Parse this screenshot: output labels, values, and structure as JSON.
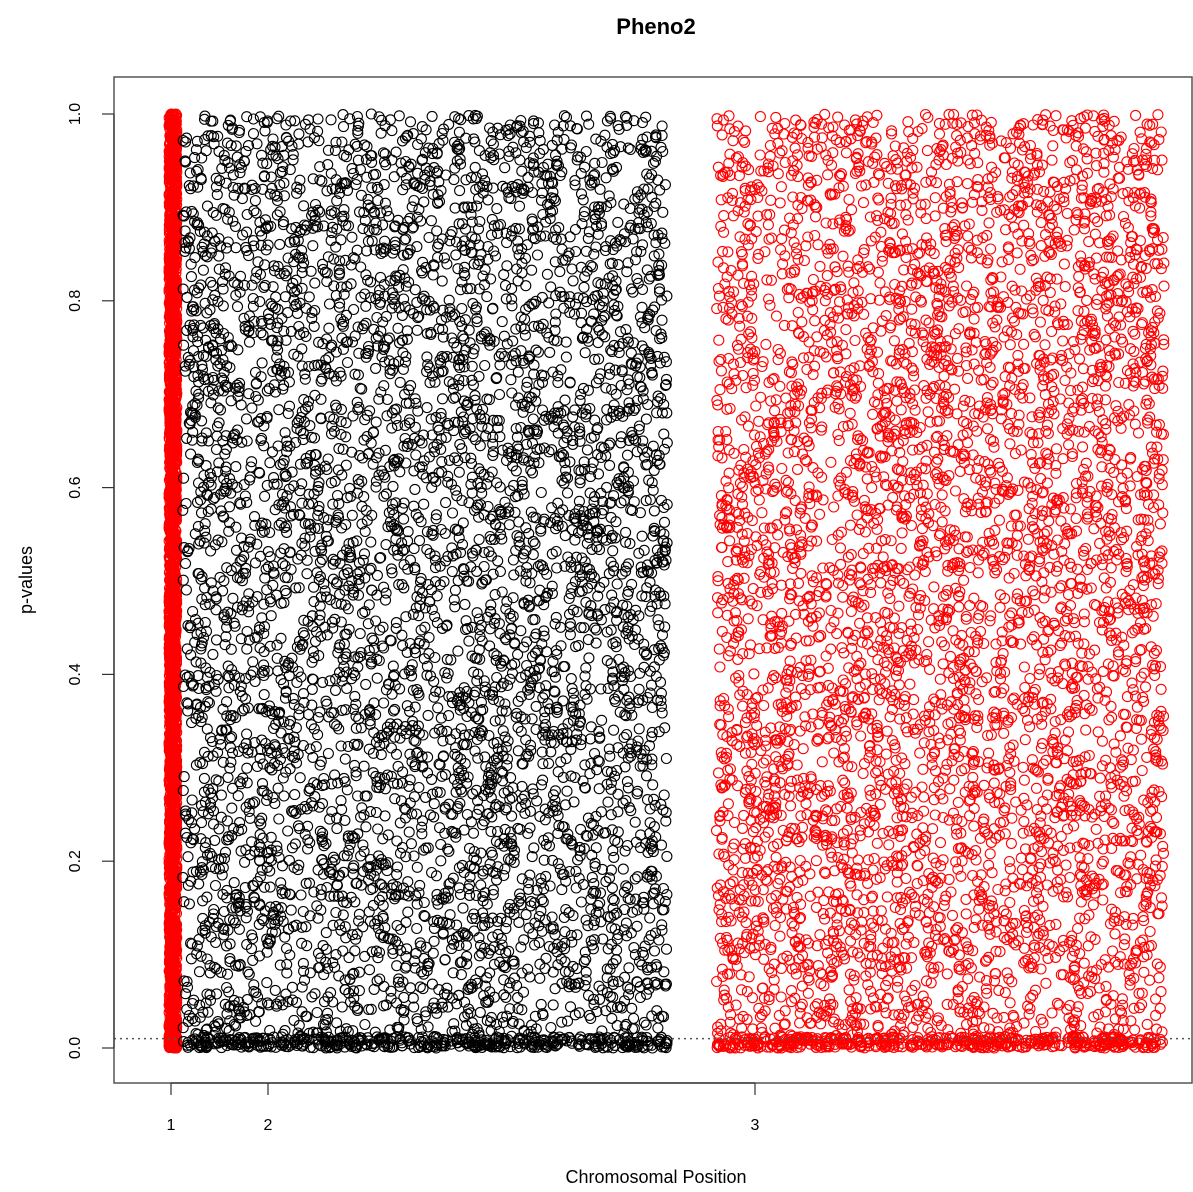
{
  "chart_data": {
    "type": "scatter",
    "title": "Pheno2",
    "xlabel": "Chromosomal Position",
    "ylabel": "p-values",
    "x_ticks": [
      {
        "value": 1,
        "label": "1"
      },
      {
        "value": 2,
        "label": "2"
      },
      {
        "value": 3,
        "label": "3"
      }
    ],
    "y_ticks": [
      {
        "value": 0.0,
        "label": "0.0"
      },
      {
        "value": 0.2,
        "label": "0.2"
      },
      {
        "value": 0.4,
        "label": "0.4"
      },
      {
        "value": 0.6,
        "label": "0.6"
      },
      {
        "value": 0.8,
        "label": "0.8"
      },
      {
        "value": 1.0,
        "label": "1.0"
      }
    ],
    "ylim": [
      0,
      1
    ],
    "threshold_line": {
      "y": 0.01,
      "style": "dotted",
      "color": "#555555"
    },
    "marker": "open-circle",
    "series": [
      {
        "color": "#ff0000",
        "x_range": [
          0.98,
          1.06
        ],
        "y_range": [
          0,
          1
        ],
        "density": "saturated",
        "count": 3000
      },
      {
        "color": "#000000",
        "x_range": [
          1.12,
          2.82
        ],
        "y_range": [
          0,
          1
        ],
        "density": "very high",
        "count": 5500
      },
      {
        "color": "#ff0000",
        "x_range": [
          2.92,
          3.84
        ],
        "y_range": [
          0,
          1
        ],
        "density": "moderate",
        "count": 5200
      }
    ],
    "grid": false,
    "legend": "none"
  }
}
